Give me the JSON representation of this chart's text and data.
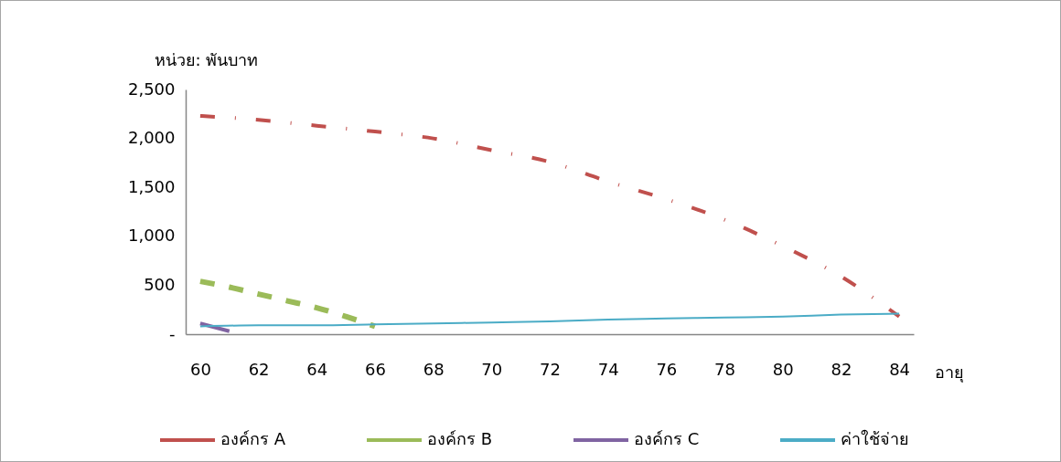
{
  "chart_data": {
    "type": "line",
    "xlabel": "อายุ",
    "ylabel": "หน่วย: พันบาท",
    "xlim": [
      59.5,
      84.5
    ],
    "xticks": [
      60,
      62,
      64,
      66,
      68,
      70,
      72,
      74,
      76,
      78,
      80,
      82,
      84
    ],
    "ylim": [
      0,
      2500
    ],
    "yticks": [
      {
        "value": 0,
        "label": "-"
      },
      500,
      {
        "value": 1000,
        "label": "1,000"
      },
      {
        "value": 1500,
        "label": "1,500"
      },
      {
        "value": 2000,
        "label": "2,000"
      },
      {
        "value": 2500,
        "label": "2,500"
      }
    ],
    "grid": false,
    "legend": "bottom",
    "marker": "none",
    "series": [
      {
        "name": "องค์กร A",
        "color": "#c0504d",
        "line_style": "dashdot",
        "x": [
          60,
          62,
          64,
          66,
          68,
          70,
          72,
          74,
          76,
          78,
          80,
          82,
          84
        ],
        "values": [
          2230,
          2190,
          2130,
          2070,
          2000,
          1880,
          1760,
          1560,
          1380,
          1170,
          900,
          590,
          180
        ]
      },
      {
        "name": "องค์กร B",
        "color": "#9bbb59",
        "line_style": "dashed",
        "x": [
          60,
          61,
          62,
          63,
          64,
          65,
          66
        ],
        "values": [
          540,
          480,
          410,
          340,
          270,
          180,
          80
        ]
      },
      {
        "name": "องค์กร C",
        "color": "#8064a2",
        "line_style": "solid",
        "x": [
          60,
          61
        ],
        "values": [
          110,
          30
        ]
      },
      {
        "name": "ค่าใช้จ่าย",
        "color": "#4bacc6",
        "line_style": "solid",
        "x": [
          60,
          62,
          64,
          66,
          68,
          70,
          72,
          74,
          76,
          78,
          80,
          82,
          84
        ],
        "values": [
          80,
          90,
          90,
          100,
          110,
          120,
          130,
          150,
          160,
          170,
          180,
          200,
          210
        ]
      }
    ]
  }
}
